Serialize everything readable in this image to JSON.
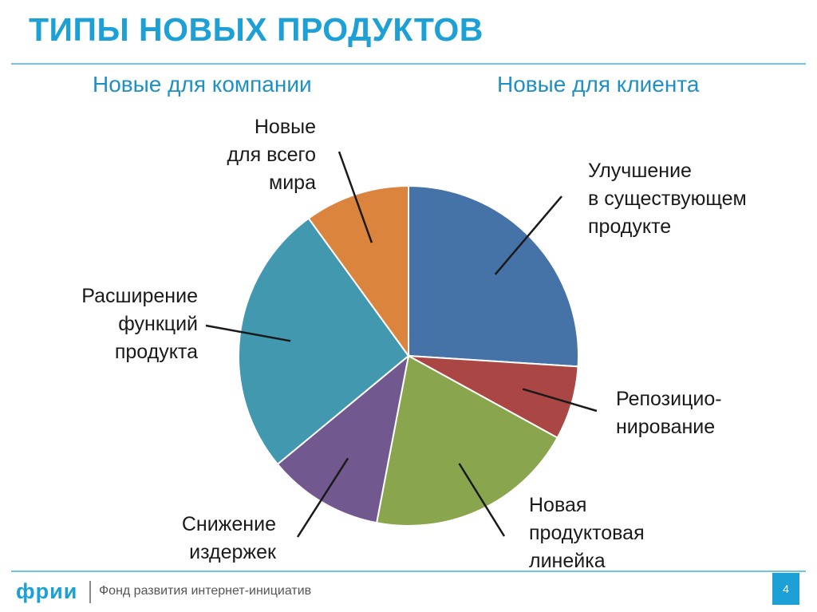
{
  "header": {
    "title": "ТИПЫ НОВЫХ ПРОДУКТОВ",
    "subtitle_left": "Новые для компании",
    "subtitle_right": "Новые для клиента"
  },
  "chart_data": {
    "type": "pie",
    "title": "",
    "start": "12 o'clock, clockwise",
    "slices": [
      {
        "label": "Улучшение\nв существующем\nпродукте",
        "value": 26,
        "color": "#4572a7"
      },
      {
        "label": "Репозицио-\nнирование",
        "value": 7,
        "color": "#aa4643"
      },
      {
        "label": "Новая\nпродуктовая\nлинейка",
        "value": 20,
        "color": "#89a54e"
      },
      {
        "label": "Снижение\nиздержек",
        "value": 11,
        "color": "#71588f"
      },
      {
        "label": "Расширение\nфункций\nпродукта",
        "value": 26,
        "color": "#4198af"
      },
      {
        "label": "Новые\nдля всего\nмира",
        "value": 10,
        "color": "#db843d"
      }
    ]
  },
  "footer": {
    "logo": "фрии",
    "org": "Фонд развития интернет-инициатив",
    "page": "4"
  }
}
